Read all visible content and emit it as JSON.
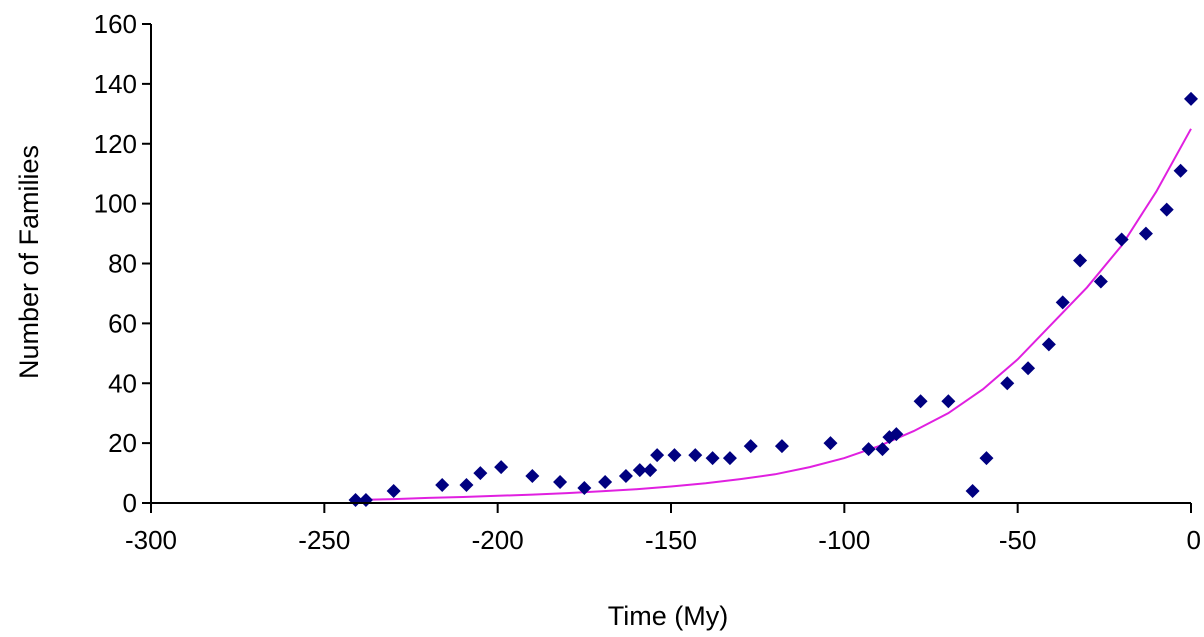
{
  "chart_data": {
    "type": "scatter",
    "xlabel": "Time (My)",
    "ylabel": "Number of Families",
    "xlim": [
      -300,
      0
    ],
    "ylim": [
      0,
      160
    ],
    "xticks": [
      -300,
      -250,
      -200,
      -150,
      -100,
      -50,
      0
    ],
    "yticks": [
      0,
      20,
      40,
      60,
      80,
      100,
      120,
      140,
      160
    ],
    "grid": false,
    "series": [
      {
        "kind": "points",
        "marker": "diamond",
        "color": "#000080",
        "x": [
          -241,
          -238,
          -230,
          -216,
          -209,
          -205,
          -199,
          -190,
          -182,
          -175,
          -169,
          -163,
          -159,
          -156,
          -154,
          -149,
          -143,
          -138,
          -133,
          -127,
          -118,
          -104,
          -93,
          -89,
          -87,
          -85,
          -78,
          -70,
          -63,
          -59,
          -53,
          -47,
          -41,
          -37,
          -32,
          -26,
          -20,
          -13,
          -7,
          -3,
          0
        ],
        "y": [
          1,
          1,
          4,
          6,
          6,
          10,
          12,
          9,
          7,
          5,
          7,
          9,
          11,
          11,
          16,
          16,
          16,
          15,
          15,
          19,
          19,
          20,
          18,
          18,
          22,
          23,
          34,
          34,
          4,
          15,
          40,
          45,
          53,
          67,
          81,
          74,
          88,
          90,
          98,
          111,
          135
        ]
      },
      {
        "kind": "trendline",
        "color": "#e020e0",
        "x": [
          -241,
          -230,
          -220,
          -210,
          -200,
          -190,
          -180,
          -170,
          -160,
          -150,
          -140,
          -130,
          -120,
          -110,
          -100,
          -90,
          -80,
          -70,
          -60,
          -50,
          -40,
          -30,
          -20,
          -10,
          0
        ],
        "y": [
          1.0,
          1.3,
          1.7,
          2.0,
          2.4,
          2.8,
          3.3,
          3.9,
          4.6,
          5.5,
          6.6,
          8.0,
          9.6,
          12.0,
          15.0,
          19.0,
          24.0,
          30.0,
          38.0,
          48.0,
          60.0,
          72.0,
          86.0,
          104.0,
          125.0
        ]
      }
    ]
  }
}
